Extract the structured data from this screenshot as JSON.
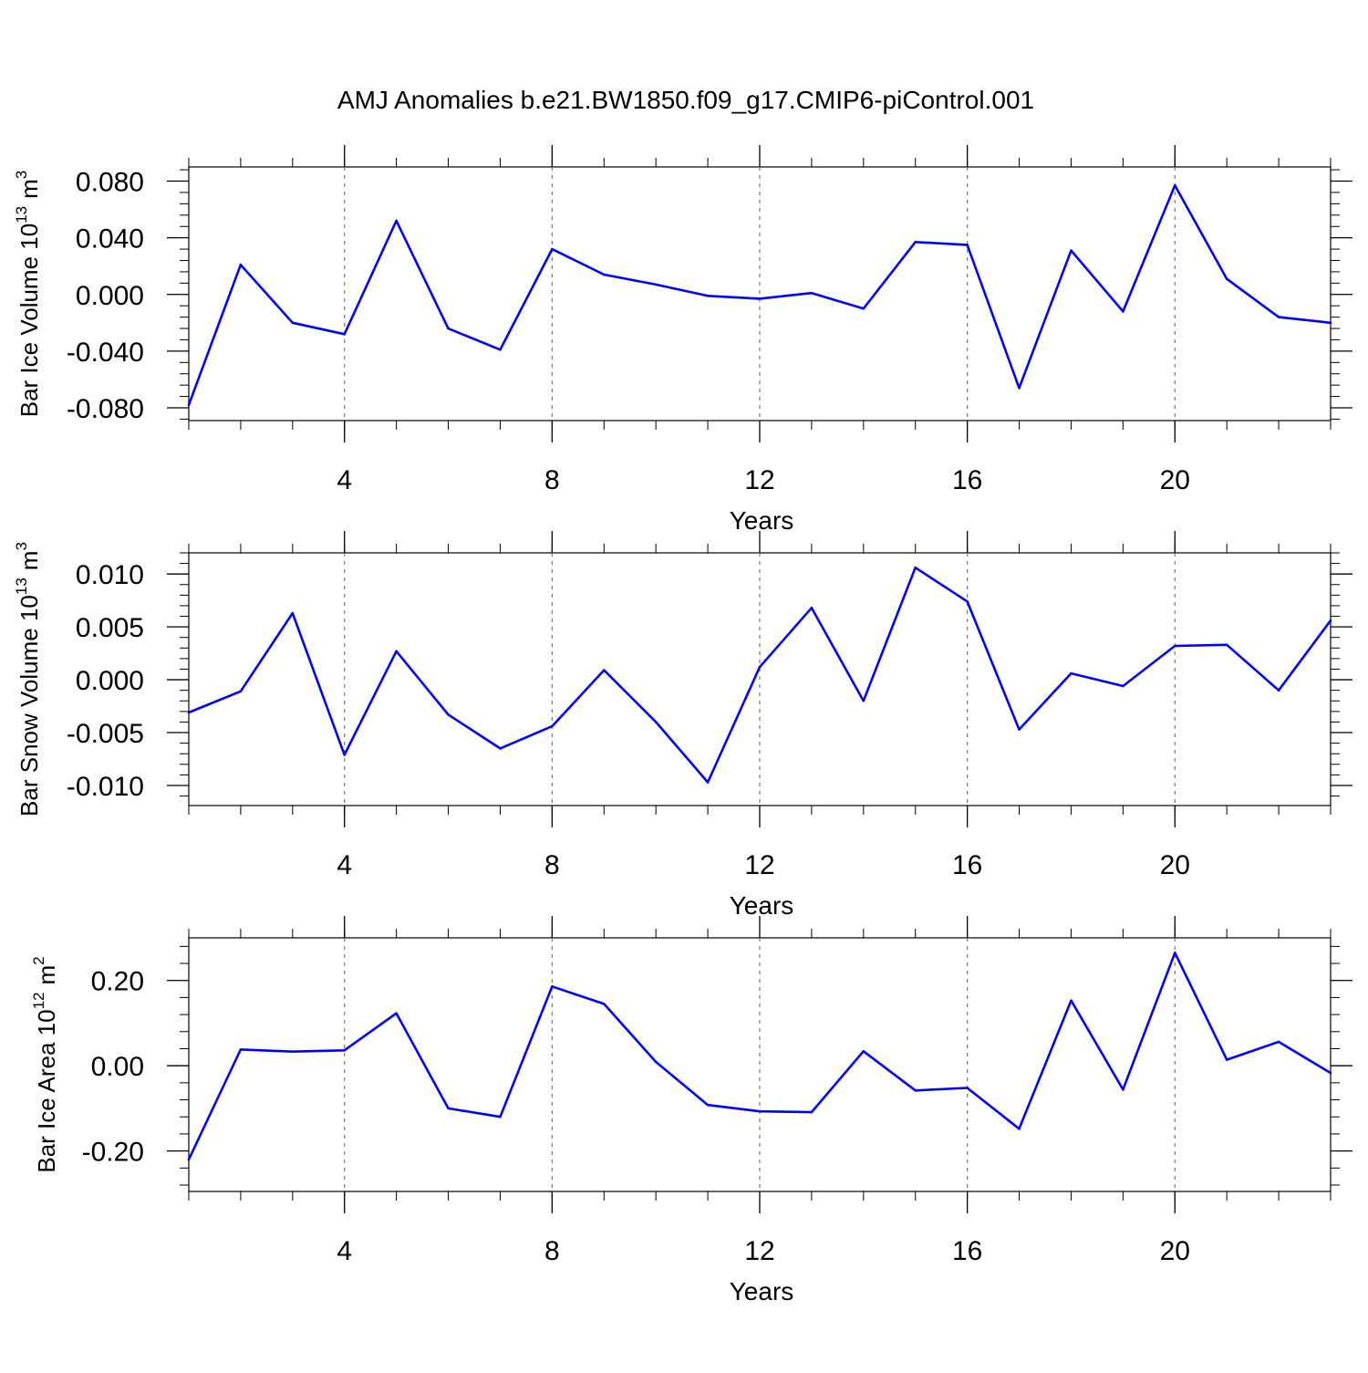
{
  "title": "AMJ Anomalies b.e21.BW1850.f09_g17.CMIP6-piControl.001",
  "line_color": "#0000ff",
  "chart_data": [
    {
      "type": "line",
      "ylabel_main": "Bar Ice Volume 10",
      "ylabel_sup": "13",
      "ylabel_unit": "m",
      "ylabel_unit_sup": "3",
      "xlabel": "Years",
      "xlim": [
        1,
        23
      ],
      "ylim": [
        -0.089,
        0.09
      ],
      "x_ticks": [
        4,
        8,
        12,
        16,
        20
      ],
      "x_tick_labels": [
        "4",
        "8",
        "12",
        "16",
        "20"
      ],
      "y_ticks": [
        0.08,
        0.04,
        0.0,
        -0.04,
        -0.08
      ],
      "y_tick_labels": [
        "0.080",
        "0.040",
        "0.000",
        "-0.040",
        "-0.080"
      ],
      "grid": "vertical dashed at major x ticks",
      "x": [
        1,
        2,
        3,
        4,
        5,
        6,
        7,
        8,
        9,
        10,
        11,
        12,
        13,
        14,
        15,
        16,
        17,
        18,
        19,
        20,
        21,
        22,
        23
      ],
      "y": [
        -0.078,
        0.021,
        -0.02,
        -0.028,
        0.052,
        -0.024,
        -0.039,
        0.032,
        0.014,
        0.007,
        -0.001,
        -0.003,
        0.001,
        -0.01,
        0.037,
        0.035,
        -0.066,
        0.031,
        -0.012,
        0.077,
        0.011,
        -0.016,
        -0.02
      ]
    },
    {
      "type": "line",
      "ylabel_main": "Bar Snow Volume 10",
      "ylabel_sup": "13",
      "ylabel_unit": "m",
      "ylabel_unit_sup": "3",
      "xlabel": "Years",
      "xlim": [
        1,
        23
      ],
      "ylim": [
        -0.0119,
        0.012
      ],
      "x_ticks": [
        4,
        8,
        12,
        16,
        20
      ],
      "x_tick_labels": [
        "4",
        "8",
        "12",
        "16",
        "20"
      ],
      "y_ticks": [
        0.01,
        0.005,
        0.0,
        -0.005,
        -0.01
      ],
      "y_tick_labels": [
        "0.010",
        "0.005",
        "0.000",
        "-0.005",
        "-0.010"
      ],
      "grid": "vertical dashed at major x ticks",
      "x": [
        1,
        2,
        3,
        4,
        5,
        6,
        7,
        8,
        9,
        10,
        11,
        12,
        13,
        14,
        15,
        16,
        17,
        18,
        19,
        20,
        21,
        22,
        23
      ],
      "y": [
        -0.0031,
        -0.0011,
        0.0063,
        -0.0071,
        0.0027,
        -0.0033,
        -0.0065,
        -0.0044,
        0.0009,
        -0.004,
        -0.0097,
        0.0012,
        0.0068,
        -0.002,
        0.0106,
        0.0074,
        -0.0047,
        0.0006,
        -0.0006,
        0.0032,
        0.0033,
        -0.001,
        0.0056
      ]
    },
    {
      "type": "line",
      "ylabel_main": "Bar Ice Area 10",
      "ylabel_sup": "12",
      "ylabel_unit": "m",
      "ylabel_unit_sup": "2",
      "xlabel": "Years",
      "xlim": [
        1,
        23
      ],
      "ylim": [
        -0.295,
        0.3
      ],
      "x_ticks": [
        4,
        8,
        12,
        16,
        20
      ],
      "x_tick_labels": [
        "4",
        "8",
        "12",
        "16",
        "20"
      ],
      "y_ticks": [
        0.2,
        0.0,
        -0.2
      ],
      "y_tick_labels": [
        "0.20",
        "0.00",
        "-0.20"
      ],
      "grid": "vertical dashed at major x ticks",
      "x": [
        1,
        2,
        3,
        4,
        5,
        6,
        7,
        8,
        9,
        10,
        11,
        12,
        13,
        14,
        15,
        16,
        17,
        18,
        19,
        20,
        21,
        22,
        23
      ],
      "y": [
        -0.22,
        0.038,
        0.033,
        0.036,
        0.123,
        -0.1,
        -0.12,
        0.186,
        0.145,
        0.009,
        -0.092,
        -0.107,
        -0.109,
        0.034,
        -0.058,
        -0.052,
        -0.148,
        0.153,
        -0.056,
        0.265,
        0.014,
        0.056,
        -0.017
      ]
    }
  ]
}
